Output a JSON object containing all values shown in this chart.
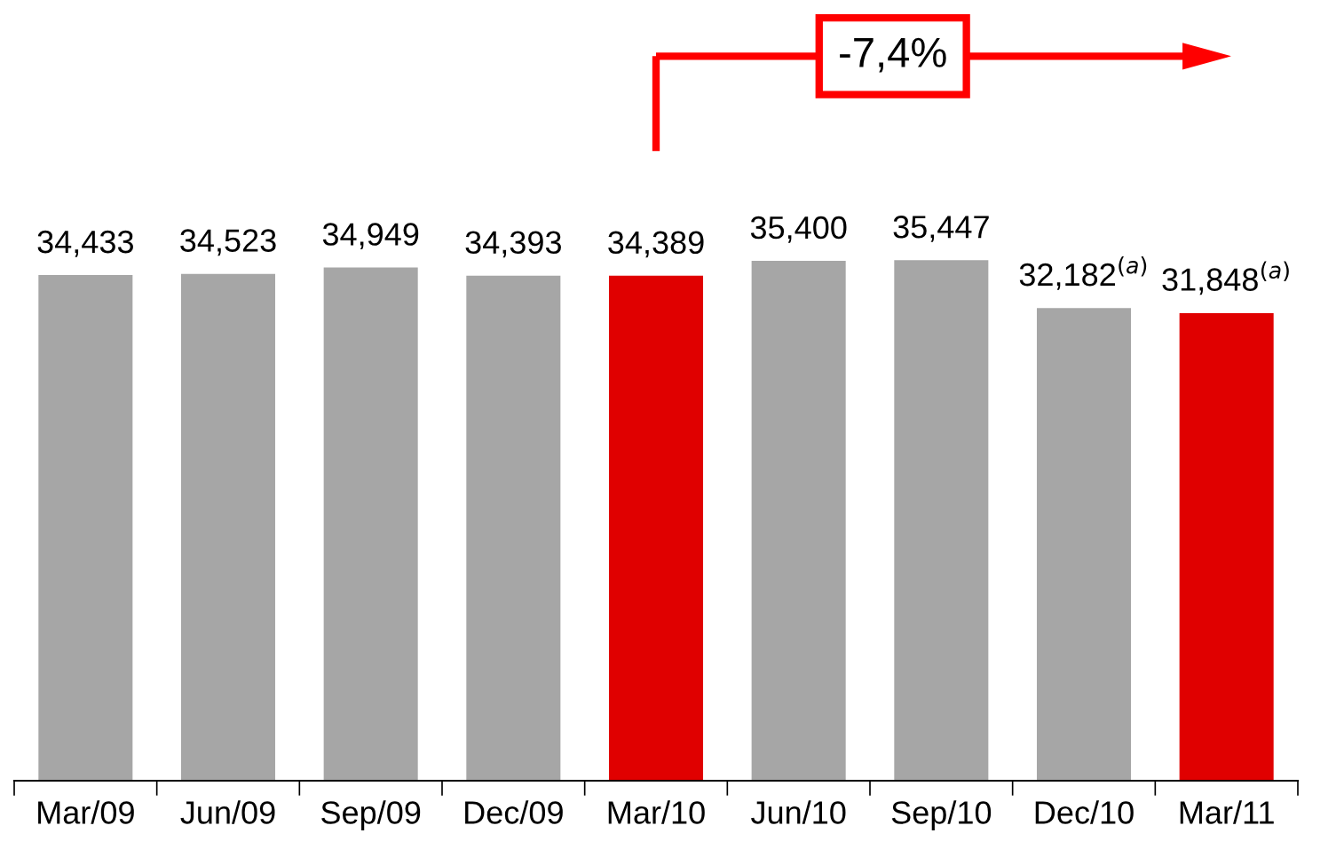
{
  "chart_data": {
    "type": "bar",
    "categories": [
      "Mar/09",
      "Jun/09",
      "Sep/09",
      "Dec/09",
      "Mar/10",
      "Jun/10",
      "Sep/10",
      "Dec/10",
      "Mar/11"
    ],
    "values": [
      34433,
      34523,
      34949,
      34393,
      34389,
      35400,
      35447,
      32182,
      31848
    ],
    "colors": [
      "#a6a6a6",
      "#a6a6a6",
      "#a6a6a6",
      "#a6a6a6",
      "#e00000",
      "#a6a6a6",
      "#a6a6a6",
      "#a6a6a6",
      "#e00000"
    ],
    "value_labels": [
      "34,433",
      "34,523",
      "34,949",
      "34,393",
      "34,389",
      "35,400",
      "35,447",
      "32,182$^{(a)}$",
      "31,848$^{(a)}$"
    ],
    "annotations": [
      "-7,4%"
    ],
    "grid": false,
    "legend": false
  }
}
